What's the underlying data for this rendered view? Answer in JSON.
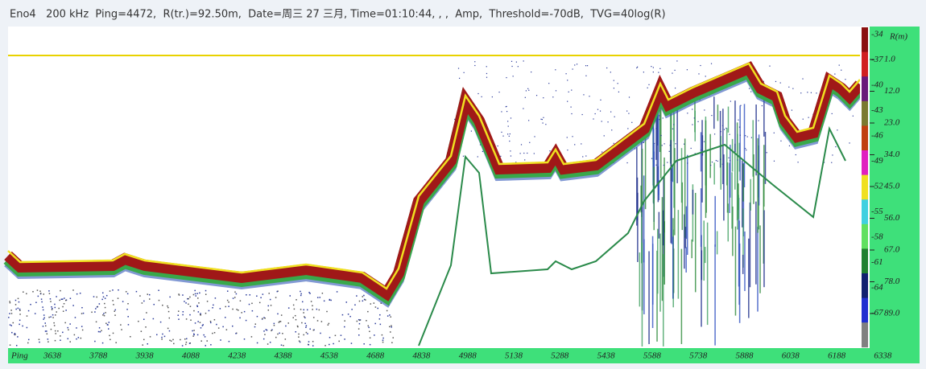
{
  "header": {
    "text": "Eno4   200 kHz  Ping=4472,  R(tr.)=92.50m,  Date=周三 27 三月, Time=01:10:44, , ,  Amp,  Threshold=-70dB,  TVG=40log(R)"
  },
  "color_scale": {
    "labels": [
      "-34",
      "-37",
      "-40",
      "-43",
      "-46",
      "-49",
      "-52",
      "-55",
      "-58",
      "-61",
      "-64",
      "-67"
    ]
  },
  "range_axis": {
    "title": "R(m)",
    "labels": [
      "1.0",
      "12.0",
      "23.0",
      "34.0",
      "45.0",
      "56.0",
      "67.0",
      "78.0",
      "89.0"
    ]
  },
  "ping_axis": {
    "title": "Ping",
    "labels": [
      "3638",
      "3788",
      "3938",
      "4088",
      "4238",
      "4388",
      "4538",
      "4688",
      "4838",
      "4988",
      "5138",
      "5288",
      "5438",
      "5588",
      "5738",
      "5888",
      "6038",
      "6188",
      "6338"
    ]
  }
}
